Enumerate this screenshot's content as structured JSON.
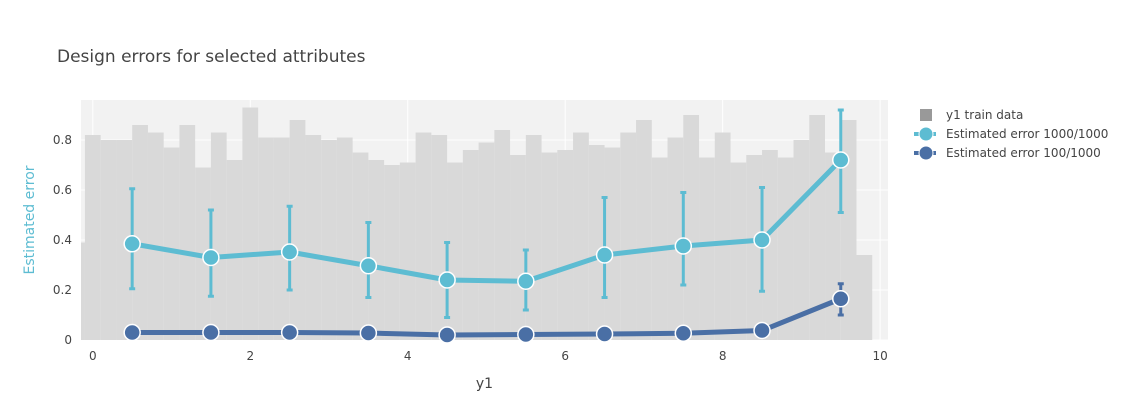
{
  "chart_data": {
    "type": "line",
    "title": "Design errors for selected attributes",
    "xlabel": "y1",
    "ylabel": "Estimated error",
    "xlim": [
      -0.15,
      10.1
    ],
    "ylim": [
      0,
      0.96
    ],
    "x_ticks": [
      0,
      2,
      4,
      6,
      8,
      10
    ],
    "y_ticks": [
      0,
      0.2,
      0.4,
      0.6,
      0.8
    ],
    "x_tick_labels": [
      "0",
      "2",
      "4",
      "6",
      "8",
      "10"
    ],
    "y_tick_labels": [
      "0",
      "0.2",
      "0.4",
      "0.6",
      "0.8"
    ],
    "legend_position": "top-right",
    "histogram": {
      "name": "y1 train data",
      "color": "#d9d9d9",
      "bin_width": 0.2,
      "x_start": -0.3,
      "values": [
        0.39,
        0.82,
        0.8,
        0.8,
        0.86,
        0.83,
        0.77,
        0.86,
        0.69,
        0.83,
        0.72,
        0.93,
        0.81,
        0.81,
        0.88,
        0.82,
        0.8,
        0.81,
        0.75,
        0.72,
        0.7,
        0.71,
        0.83,
        0.82,
        0.71,
        0.76,
        0.79,
        0.84,
        0.74,
        0.82,
        0.75,
        0.76,
        0.83,
        0.78,
        0.77,
        0.83,
        0.88,
        0.73,
        0.81,
        0.9,
        0.73,
        0.83,
        0.71,
        0.74,
        0.76,
        0.73,
        0.8,
        0.9,
        0.75,
        0.88,
        0.34
      ]
    },
    "series": [
      {
        "name": "Estimated error 1000/1000",
        "color": "#5dbcd2",
        "x": [
          0.5,
          1.5,
          2.5,
          3.5,
          4.5,
          5.5,
          6.5,
          7.5,
          8.5,
          9.5
        ],
        "y": [
          0.385,
          0.33,
          0.352,
          0.297,
          0.24,
          0.235,
          0.34,
          0.376,
          0.4,
          0.72
        ],
        "error_low": [
          0.205,
          0.175,
          0.2,
          0.17,
          0.09,
          0.12,
          0.17,
          0.22,
          0.195,
          0.51
        ],
        "error_high": [
          0.605,
          0.52,
          0.535,
          0.47,
          0.39,
          0.36,
          0.57,
          0.59,
          0.61,
          0.92
        ]
      },
      {
        "name": "Estimated error 100/1000",
        "color": "#4a6fa5",
        "x": [
          0.5,
          1.5,
          2.5,
          3.5,
          4.5,
          5.5,
          6.5,
          7.5,
          8.5,
          9.5
        ],
        "y": [
          0.03,
          0.03,
          0.03,
          0.028,
          0.02,
          0.022,
          0.024,
          0.027,
          0.038,
          0.165
        ],
        "error_low": [
          null,
          null,
          null,
          null,
          null,
          null,
          null,
          null,
          null,
          0.1
        ],
        "error_high": [
          null,
          null,
          null,
          null,
          null,
          null,
          null,
          null,
          null,
          0.225
        ]
      }
    ]
  }
}
